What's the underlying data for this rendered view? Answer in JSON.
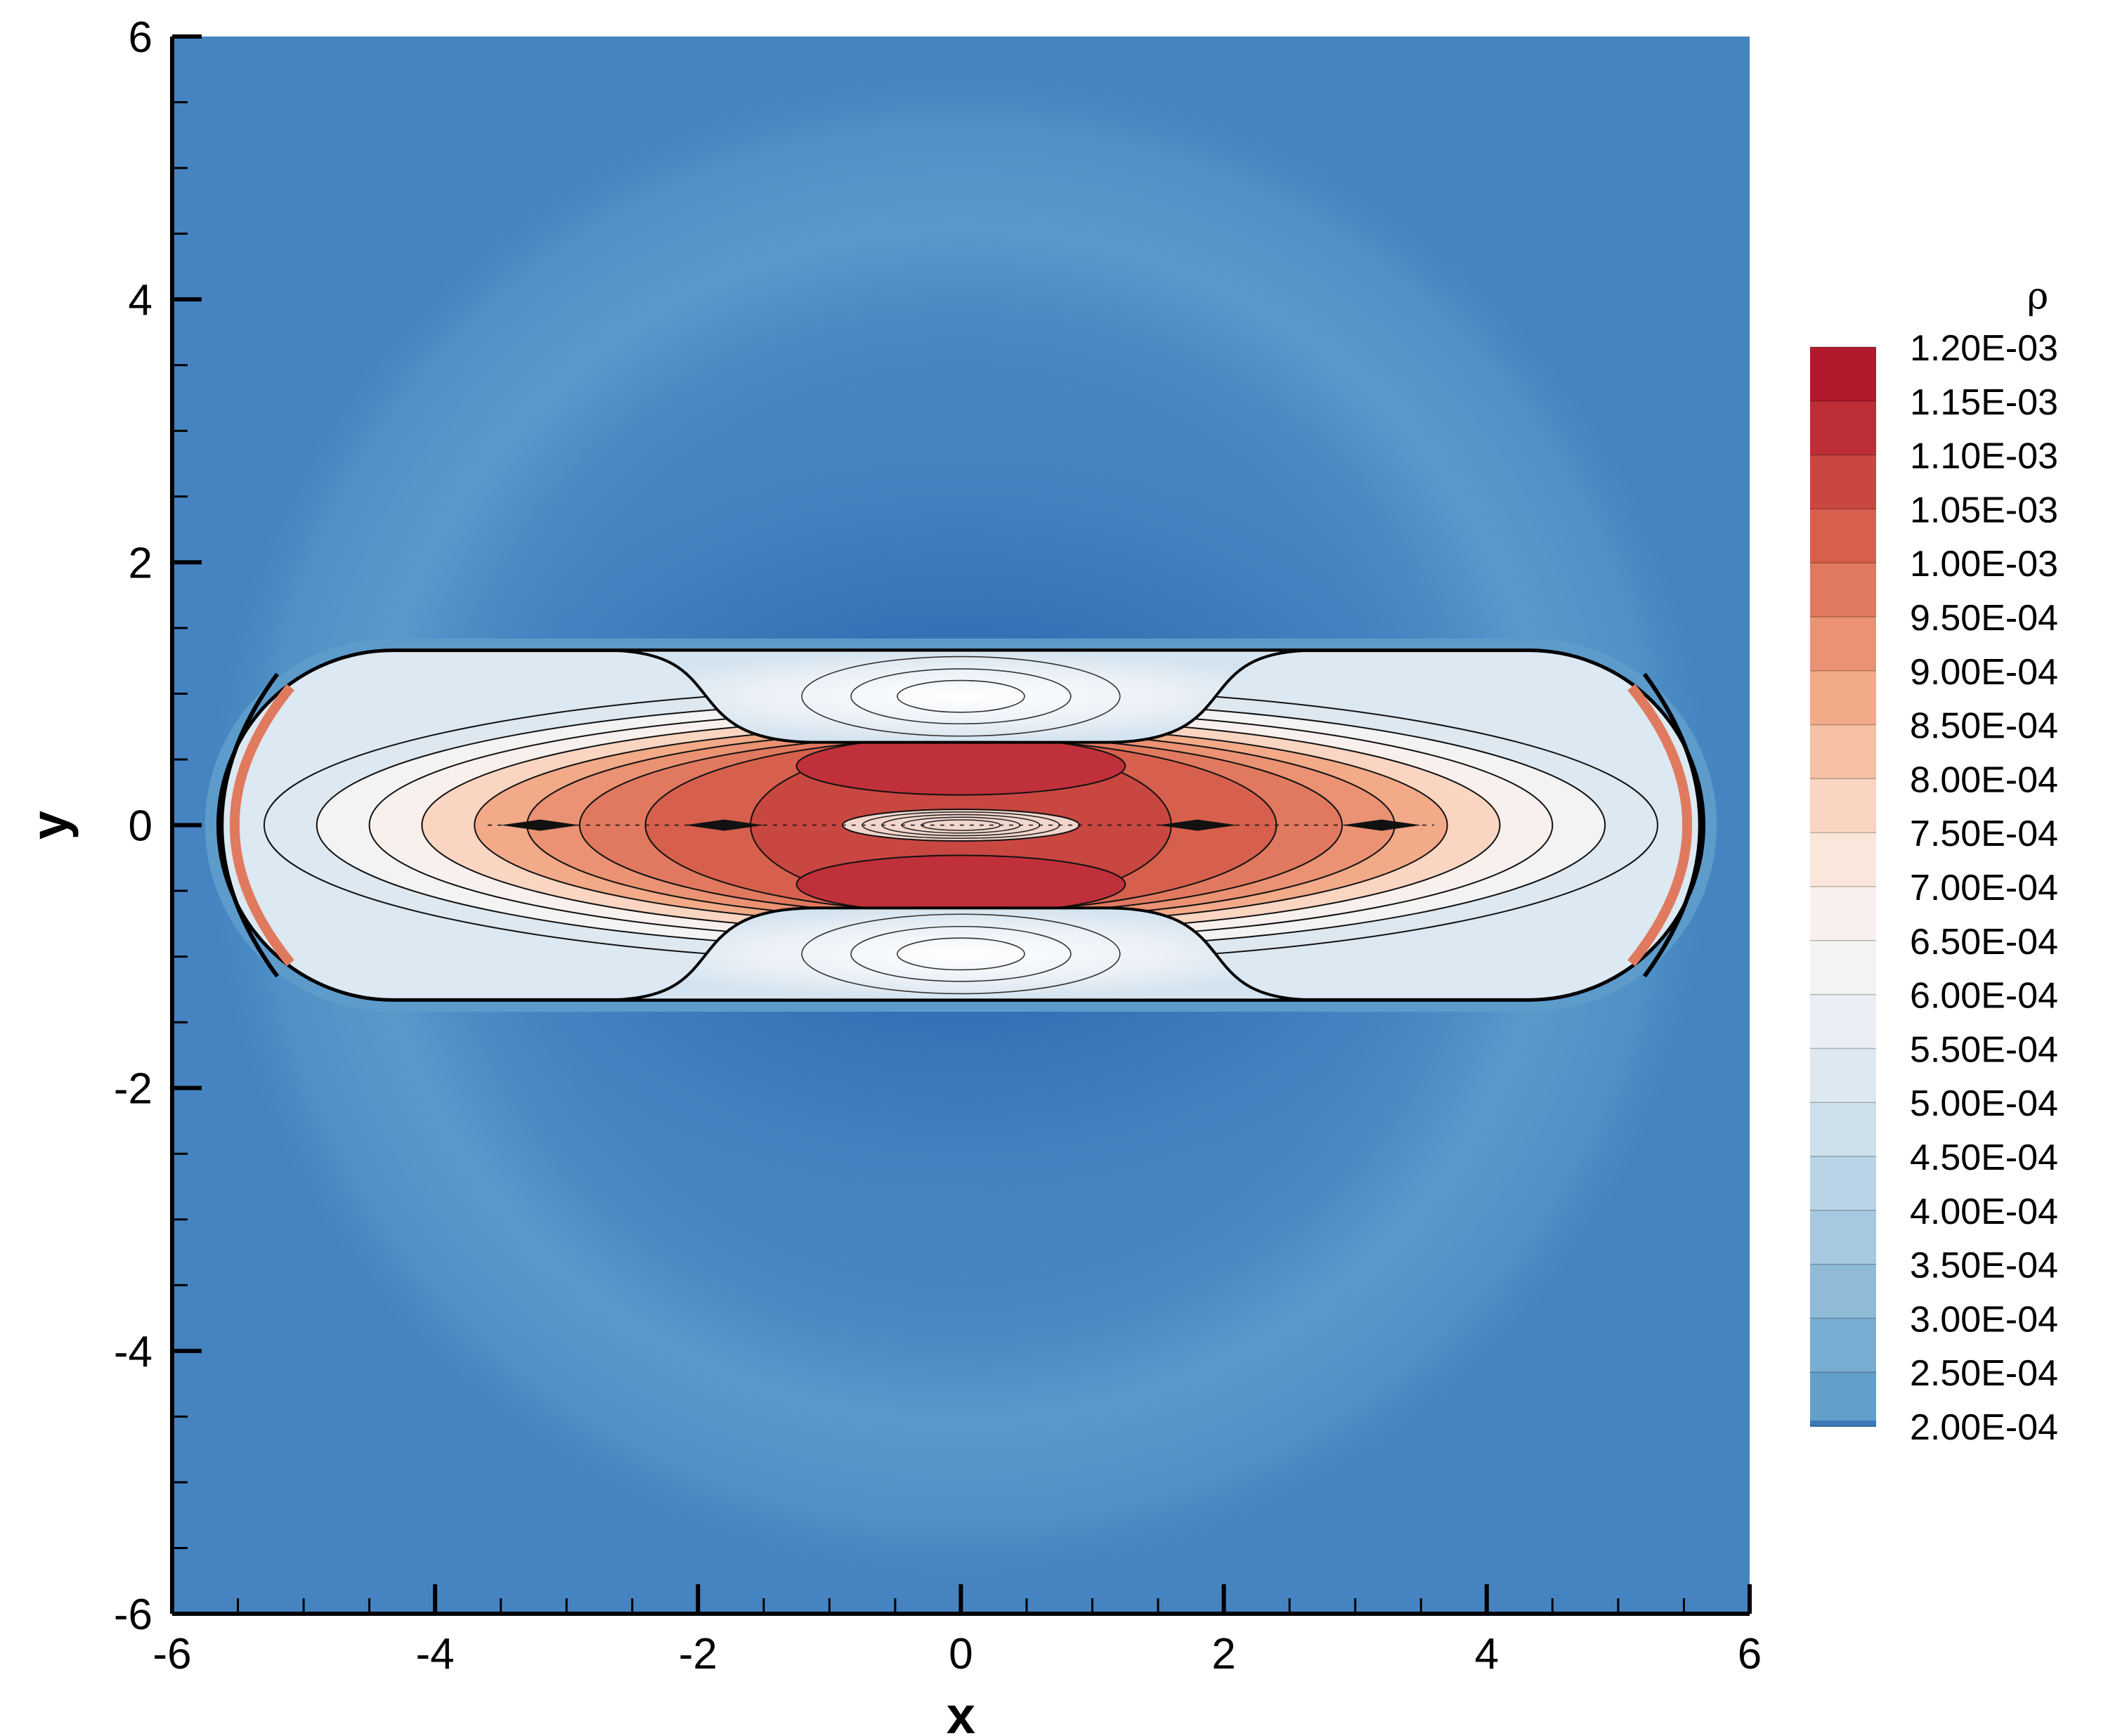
{
  "chart_data": {
    "type": "heatmap",
    "title": "",
    "xlabel": "x",
    "ylabel": "y",
    "xlim": [
      -6,
      6
    ],
    "ylim": [
      -6,
      6
    ],
    "x_ticks": [
      "-6",
      "-4",
      "-2",
      "0",
      "2",
      "4",
      "6"
    ],
    "y_ticks": [
      "-6",
      "-4",
      "-2",
      "0",
      "2",
      "4",
      "6"
    ],
    "colorbar": {
      "title": "ρ",
      "levels": [
        "1.20E-03",
        "1.15E-03",
        "1.10E-03",
        "1.05E-03",
        "1.00E-03",
        "9.50E-04",
        "9.00E-04",
        "8.50E-04",
        "8.00E-04",
        "7.50E-04",
        "7.00E-04",
        "6.50E-04",
        "6.00E-04",
        "5.50E-04",
        "5.00E-04",
        "4.50E-04",
        "4.00E-04",
        "3.50E-04",
        "3.00E-04",
        "2.50E-04",
        "2.00E-04"
      ],
      "colors": [
        "#b2182b",
        "#bd2e36",
        "#c94741",
        "#d6604d",
        "#e0795f",
        "#ea9273",
        "#f2aa88",
        "#f6c0a4",
        "#f9d5c2",
        "#fae6da",
        "#f8f0ec",
        "#f3f3f3",
        "#e9eff4",
        "#dde8f1",
        "#cde0ec",
        "#bad4e7",
        "#a6c8e0",
        "#8fbbd8",
        "#79aed2",
        "#62a0cb",
        "#4b91c3"
      ]
    },
    "legend_position": "right",
    "grid": false,
    "colors": {
      "background_field": "#4584c1",
      "outer_ring": "#5598ca",
      "depleted_shell": "#3878b8",
      "cavity_fill": "#e6eef5",
      "core_high": "#c0303a"
    }
  }
}
